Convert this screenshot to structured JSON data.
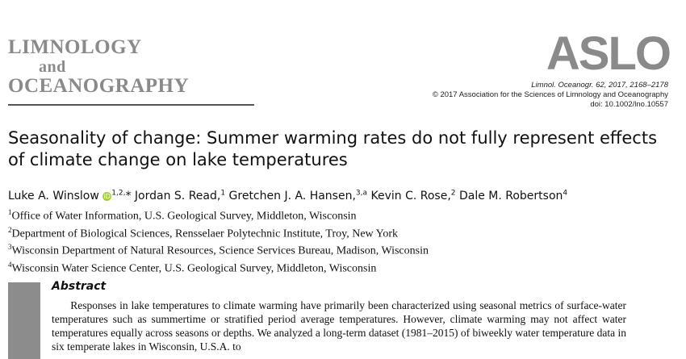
{
  "journal": {
    "line1": "LIMNOLOGY",
    "line2": "and",
    "line3": "OCEANOGRAPHY"
  },
  "publisher_logo": "ASLO",
  "citation": {
    "line1": "Limnol. Oceanogr. 62, 2017, 2168–2178",
    "line2": "© 2017 Association for the Sciences of Limnology and Oceanography",
    "line3": "doi: 10.1002/lno.10557"
  },
  "title": "Seasonality of change: Summer warming rates do not fully represent effects of climate change on lake temperatures",
  "authors": [
    {
      "name": "Luke A. Winslow",
      "orcid": true,
      "sup": "1,2,",
      "star": "*",
      "sep": ", "
    },
    {
      "name": "Jordan S. Read,",
      "sup": "1",
      "sep": " "
    },
    {
      "name": "Gretchen J. A. Hansen,",
      "sup": "3,a",
      "sep": " "
    },
    {
      "name": "Kevin C. Rose,",
      "sup": "2",
      "sep": " "
    },
    {
      "name": "Dale M. Robertson",
      "sup": "4",
      "sep": ""
    }
  ],
  "affiliations": [
    {
      "num": "1",
      "text": "Office of Water Information, U.S. Geological Survey, Middleton, Wisconsin"
    },
    {
      "num": "2",
      "text": "Department of Biological Sciences, Rensselaer Polytechnic Institute, Troy, New York"
    },
    {
      "num": "3",
      "text": "Wisconsin Department of Natural Resources, Science Services Bureau, Madison, Wisconsin"
    },
    {
      "num": "4",
      "text": "Wisconsin Water Science Center, U.S. Geological Survey, Middleton, Wisconsin"
    }
  ],
  "abstract": {
    "heading": "Abstract",
    "text": "Responses in lake temperatures to climate warming have primarily been characterized using seasonal metrics of surface-water temperatures such as summertime or stratified period average temperatures. However, climate warming may not affect water temperatures equally across seasons or depths. We analyzed a long-term dataset (1981–2015) of biweekly water temperature data in six temperate lakes in Wisconsin, U.S.A. to"
  }
}
